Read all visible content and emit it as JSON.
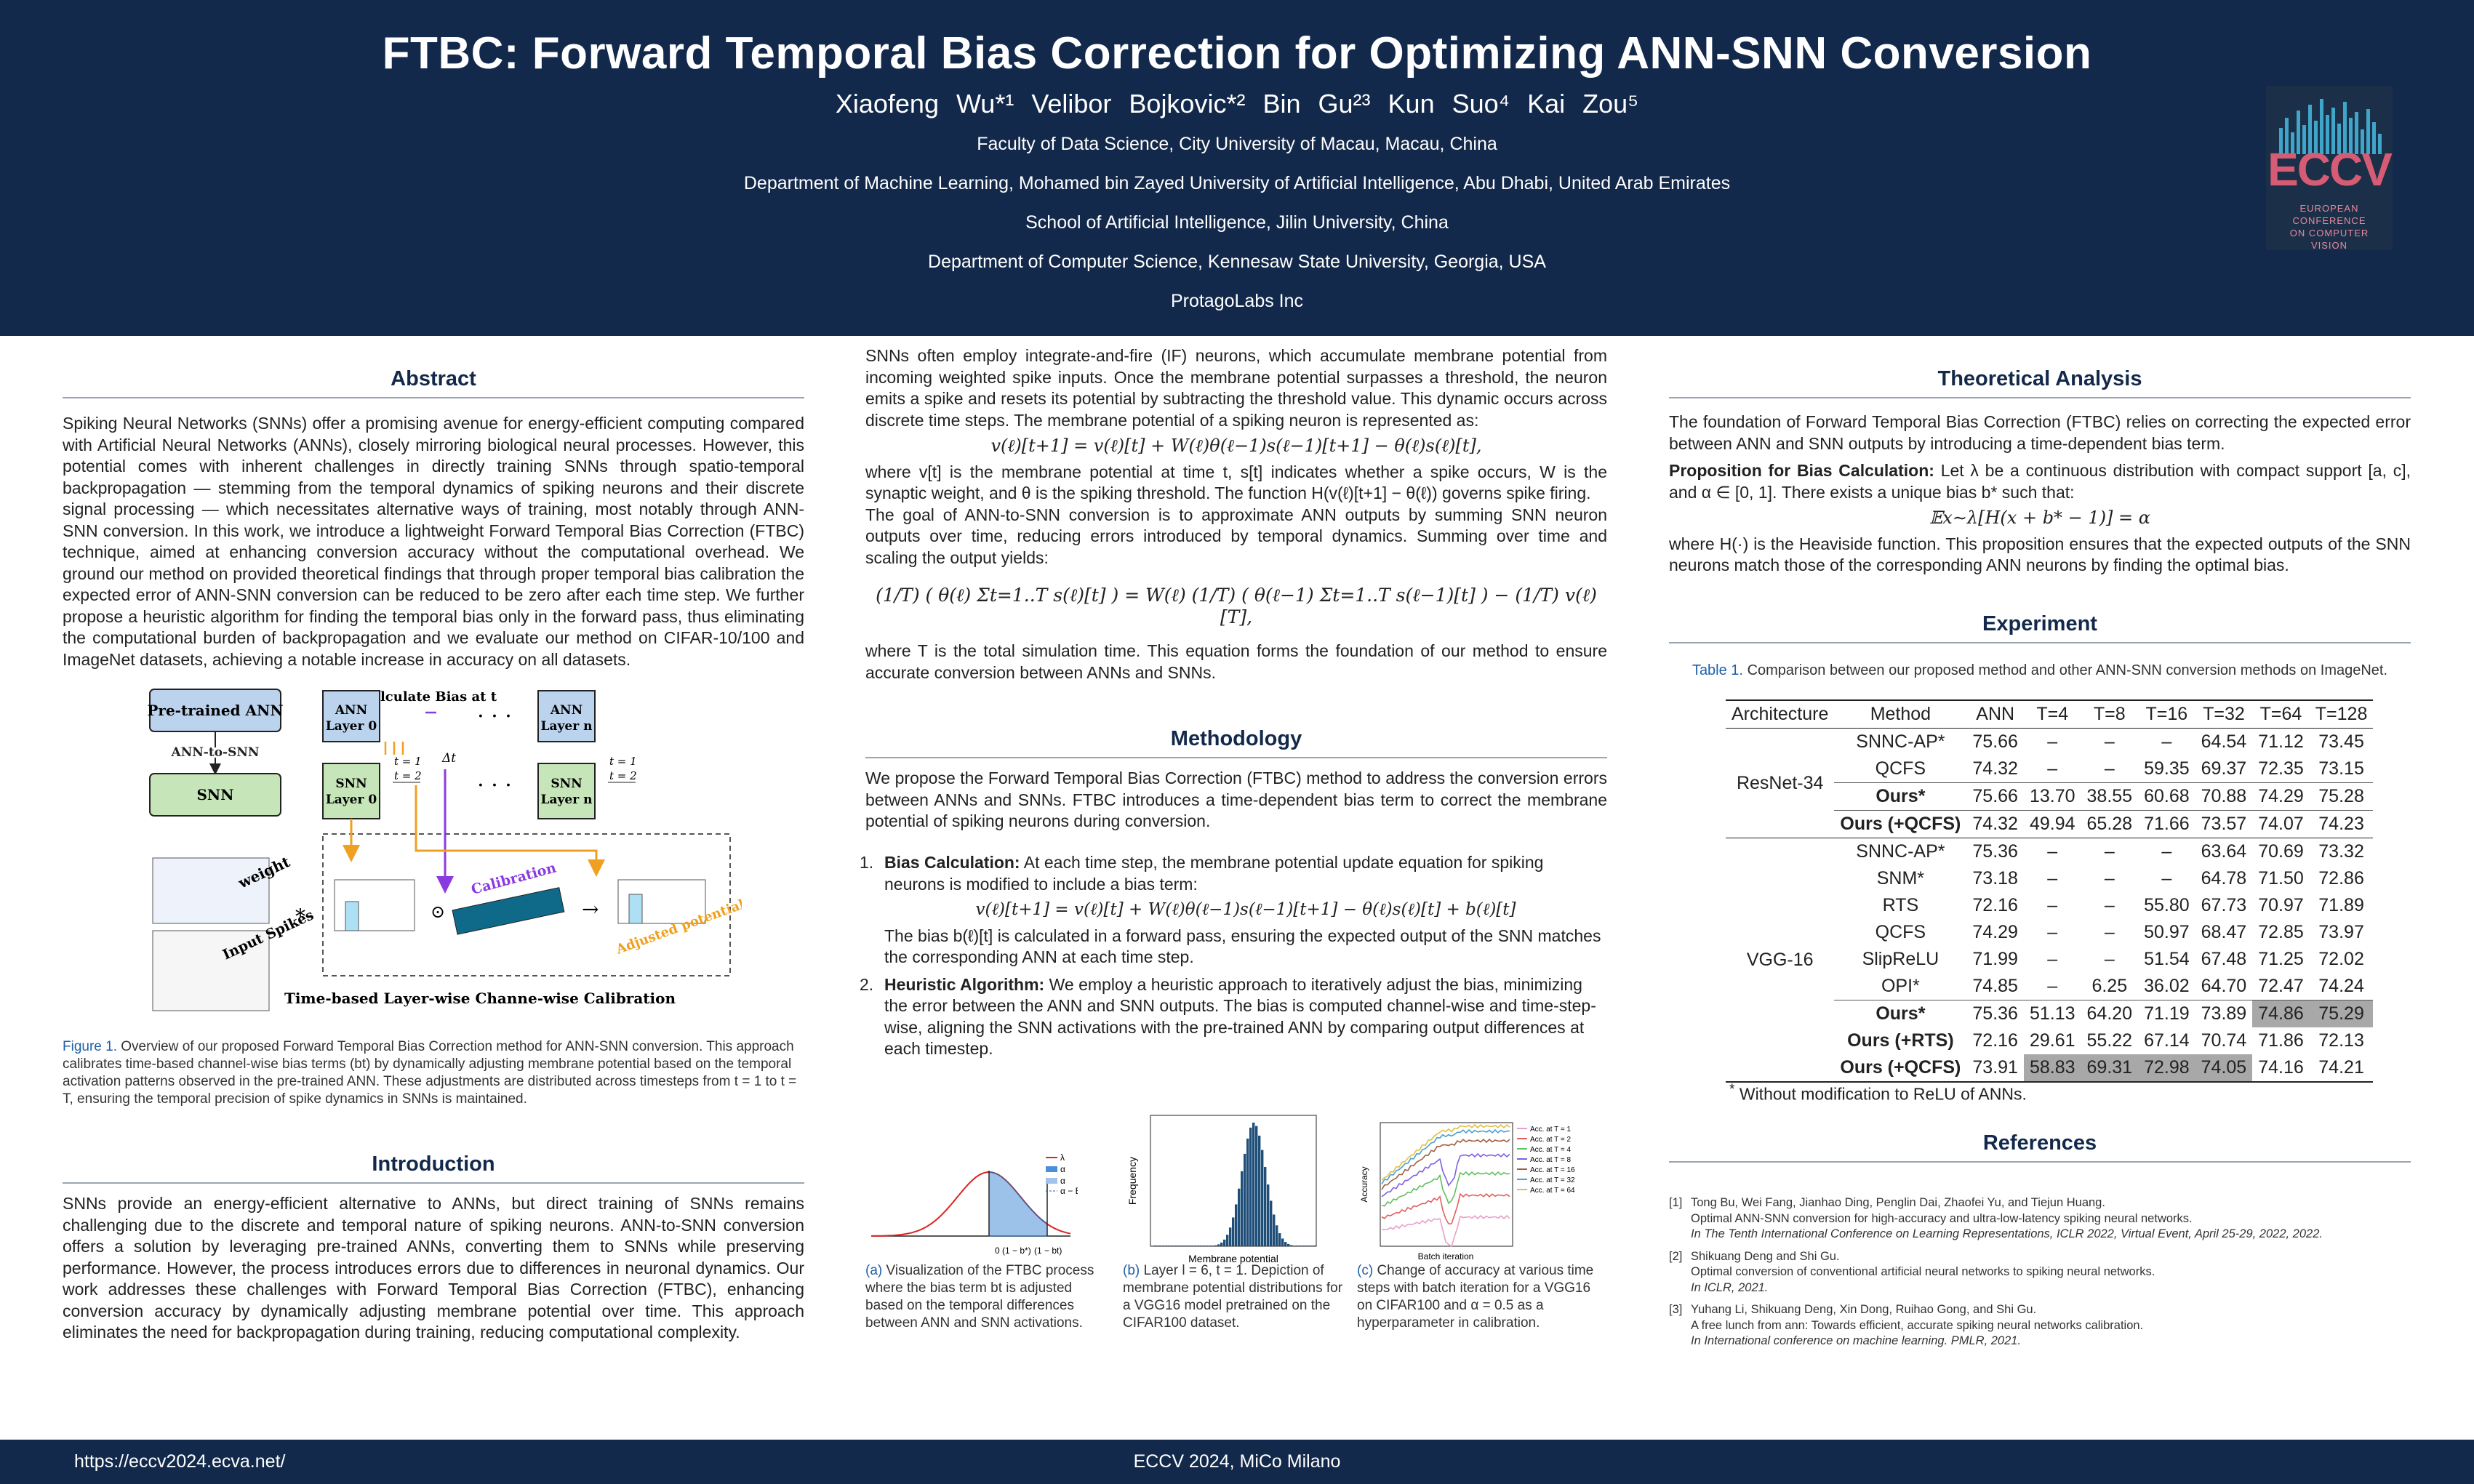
{
  "header": {
    "title": "FTBC: Forward Temporal Bias Correction for Optimizing ANN-SNN Conversion",
    "authors": [
      "Xiaofeng Wu*¹",
      "Velibor Bojkovic*²",
      "Bin Gu²³",
      "Kun Suo⁴",
      "Kai Zou⁵"
    ],
    "affiliations": [
      "Faculty of Data Science, City University of Macau, Macau, China",
      "Department of Machine Learning, Mohamed bin Zayed University of Artificial Intelligence, Abu Dhabi, United Arab Emirates",
      "School of Artificial Intelligence, Jilin University, China",
      "Department of Computer Science, Kennesaw State University, Georgia, USA",
      "ProtagoLabs Inc"
    ],
    "logo": {
      "word": "ECCV",
      "sub": [
        "EUROPEAN",
        "CONFERENCE",
        "ON COMPUTER",
        "VISION"
      ]
    }
  },
  "abstract": {
    "heading": "Abstract",
    "text": "Spiking Neural Networks (SNNs) offer a promising avenue for energy-efficient computing compared with Artificial Neural Networks (ANNs), closely mirroring biological neural processes. However, this potential comes with inherent challenges in directly training SNNs through spatio-temporal backpropagation — stemming from the temporal dynamics of spiking neurons and their discrete signal processing — which necessitates alternative ways of training, most notably through ANN-SNN conversion. In this work, we introduce a lightweight Forward Temporal Bias Correction (FTBC) technique, aimed at enhancing conversion accuracy without the computational overhead. We ground our method on provided theoretical findings that through proper temporal bias calibration the expected error of ANN-SNN conversion can be reduced to be zero after each time step. We further propose a heuristic algorithm for finding the temporal bias only in the forward pass, thus eliminating the computational burden of backpropagation and we evaluate our method on CIFAR-10/100 and ImageNet datasets, achieving a notable increase in accuracy on all datasets."
  },
  "figure1": {
    "pretrained": "Pre-trained ANN",
    "ann_to_snn": "ANN-to-SNN",
    "snn": "SNN",
    "calc_bias": "Calculate Bias at t",
    "ann0": [
      "ANN",
      "Layer 0"
    ],
    "annn": [
      "ANN",
      "Layer n"
    ],
    "snn0": [
      "SNN",
      "Layer 0"
    ],
    "snnn": [
      "SNN",
      "Layer n"
    ],
    "t1": "t = 1",
    "t2": "t = 2",
    "delta": "Δt",
    "weight": "weight",
    "input": "Input Spikes",
    "calibration": "Calibration",
    "adjusted": "Adjusted potential",
    "footer": "Time-based Layer-wise Channe-wise Calibration",
    "caption_label": "Figure 1.",
    "caption": "Overview of our proposed Forward Temporal Bias Correction method for ANN-SNN conversion. This approach calibrates time-based channel-wise bias terms (bt) by dynamically adjusting membrane potential based on the temporal activation patterns observed in the pre-trained ANN. These adjustments are distributed across timesteps from t = 1 to t = T, ensuring the temporal precision of spike dynamics in SNNs is maintained."
  },
  "introduction": {
    "heading": "Introduction",
    "text": "SNNs provide an energy-efficient alternative to ANNs, but direct training of SNNs remains challenging due to the discrete and temporal nature of spiking neurons. ANN-to-SNN conversion offers a solution by leveraging pre-trained ANNs, converting them to SNNs while preserving performance. However, the process introduces errors due to differences in neuronal dynamics. Our work addresses these challenges with Forward Temporal Bias Correction (FTBC), enhancing conversion accuracy by dynamically adjusting membrane potential over time. This approach eliminates the need for backpropagation during training, reducing computational complexity."
  },
  "middle": {
    "p1": "SNNs often employ integrate-and-fire (IF) neurons, which accumulate membrane potential from incoming weighted spike inputs. Once the membrane potential surpasses a threshold, the neuron emits a spike and resets its potential by subtracting the threshold value. This dynamic occurs across discrete time steps. The membrane potential of a spiking neuron is represented as:",
    "eq1": "v(ℓ)[t+1] = v(ℓ)[t] + W(ℓ)θ(ℓ−1)s(ℓ−1)[t+1] − θ(ℓ)s(ℓ)[t],",
    "p2": "where v[t] is the membrane potential at time t, s[t] indicates whether a spike occurs, W is the synaptic weight, and θ is the spiking threshold. The function H(v(ℓ)[t+1] − θ(ℓ)) governs spike firing.",
    "p3": "The goal of ANN-to-SNN conversion is to approximate ANN outputs by summing SNN neuron outputs over time, reducing errors introduced by temporal dynamics. Summing over time and scaling the output yields:",
    "eq2": "(1/T) ( θ(ℓ) Σt=1..T s(ℓ)[t] ) = W(ℓ) (1/T) ( θ(ℓ−1) Σt=1..T s(ℓ−1)[t] ) − (1/T) v(ℓ)[T],",
    "p4": "where T is the total simulation time. This equation forms the foundation of our method to ensure accurate conversion between ANNs and SNNs."
  },
  "methodology": {
    "heading": "Methodology",
    "intro": "We propose the Forward Temporal Bias Correction (FTBC) method to address the conversion errors between ANNs and SNNs. FTBC introduces a time-dependent bias term to correct the membrane potential of spiking neurons during conversion.",
    "items": [
      {
        "num": "1.",
        "title": "Bias Calculation:",
        "text": "At each time step, the membrane potential update equation for spiking neurons is modified to include a bias term:",
        "eq": "v(ℓ)[t+1] = v(ℓ)[t] + W(ℓ)θ(ℓ−1)s(ℓ−1)[t+1] − θ(ℓ)s(ℓ)[t] + b(ℓ)[t]",
        "after": "The bias b(ℓ)[t] is calculated in a forward pass, ensuring the expected output of the SNN matches the corresponding ANN at each time step."
      },
      {
        "num": "2.",
        "title": "Heuristic Algorithm:",
        "text": "We employ a heuristic approach to iteratively adjust the bias, minimizing the error between the ANN and SNN outputs. The bias is computed channel-wise and time-step-wise, aligning the SNN activations with the pre-trained ANN by comparing output differences at each timestep.",
        "eq": "",
        "after": ""
      }
    ]
  },
  "subfigs": {
    "a": {
      "label": "(a)",
      "caption": "Visualization of the FTBC process where the bias term bt is adjusted based on the temporal differences between ANN and SNN activations.",
      "x0": "0",
      "x1": "(1 − b*)",
      "x2": "(1 − bt)",
      "legend": [
        "λ",
        "α",
        "α",
        "α − Et"
      ]
    },
    "b": {
      "label": "(b)",
      "caption": "Layer l = 6, t = 1. Depiction of membrane potential distributions for a VGG16 model pretrained on the CIFAR100 dataset.",
      "xlabel": "Membrane potential",
      "ylabel": "Frequency"
    },
    "c": {
      "label": "(c)",
      "caption": "Change of accuracy at various time steps with batch iteration for a VGG16 on CIFAR100 and α = 0.5 as a hyperparameter in calibration.",
      "xlabel": "Batch iteration",
      "ylabel": "Accuracy",
      "legend": [
        "Acc. at T = 1",
        "Acc. at T = 2",
        "Acc. at T = 4",
        "Acc. at T = 8",
        "Acc. at T = 16",
        "Acc. at T = 32",
        "Acc. at T = 64"
      ]
    }
  },
  "theory": {
    "heading": "Theoretical Analysis",
    "p1": "The foundation of Forward Temporal Bias Correction (FTBC) relies on correcting the expected error between ANN and SNN outputs by introducing a time-dependent bias term.",
    "prop_title": "Proposition for Bias Calculation:",
    "prop": "Let λ be a continuous distribution with compact support [a, c], and α ∈ [0, 1]. There exists a unique bias b* such that:",
    "eq": "𝔼x∼λ[H(x + b* − 1)] = α",
    "p2": "where H(·) is the Heaviside function. This proposition ensures that the expected outputs of the SNN neurons match those of the corresponding ANN neurons by finding the optimal bias."
  },
  "experiment": {
    "heading": "Experiment",
    "caption_label": "Table 1.",
    "caption": "Comparison between our proposed method and other ANN-SNN conversion methods on ImageNet.",
    "columns": [
      "Architecture",
      "Method",
      "ANN",
      "T=4",
      "T=8",
      "T=16",
      "T=32",
      "T=64",
      "T=128"
    ],
    "groups": [
      {
        "arch": "ResNet-34",
        "rows": [
          {
            "method": "SNNC-AP*",
            "bold": false,
            "vals": [
              "75.66",
              "–",
              "–",
              "–",
              "64.54",
              "71.12",
              "73.45"
            ],
            "hl": []
          },
          {
            "method": "QCFS",
            "bold": false,
            "vals": [
              "74.32",
              "–",
              "–",
              "59.35",
              "69.37",
              "72.35",
              "73.15"
            ],
            "hl": []
          },
          {
            "method": "Ours*",
            "bold": true,
            "vals": [
              "75.66",
              "13.70",
              "38.55",
              "60.68",
              "70.88",
              "74.29",
              "75.28"
            ],
            "hl": []
          },
          {
            "method": "Ours (+QCFS)",
            "bold": true,
            "vals": [
              "74.32",
              "49.94",
              "65.28",
              "71.66",
              "73.57",
              "74.07",
              "74.23"
            ],
            "hl": []
          }
        ]
      },
      {
        "arch": "VGG-16",
        "rows": [
          {
            "method": "SNNC-AP*",
            "bold": false,
            "vals": [
              "75.36",
              "–",
              "–",
              "–",
              "63.64",
              "70.69",
              "73.32"
            ],
            "hl": []
          },
          {
            "method": "SNM*",
            "bold": false,
            "vals": [
              "73.18",
              "–",
              "–",
              "–",
              "64.78",
              "71.50",
              "72.86"
            ],
            "hl": []
          },
          {
            "method": "RTS",
            "bold": false,
            "vals": [
              "72.16",
              "–",
              "–",
              "55.80",
              "67.73",
              "70.97",
              "71.89"
            ],
            "hl": []
          },
          {
            "method": "QCFS",
            "bold": false,
            "vals": [
              "74.29",
              "–",
              "–",
              "50.97",
              "68.47",
              "72.85",
              "73.97"
            ],
            "hl": []
          },
          {
            "method": "SlipReLU",
            "bold": false,
            "vals": [
              "71.99",
              "–",
              "–",
              "51.54",
              "67.48",
              "71.25",
              "72.02"
            ],
            "hl": []
          },
          {
            "method": "OPI*",
            "bold": false,
            "vals": [
              "74.85",
              "–",
              "6.25",
              "36.02",
              "64.70",
              "72.47",
              "74.24"
            ],
            "hl": []
          },
          {
            "method": "Ours*",
            "bold": true,
            "vals": [
              "75.36",
              "51.13",
              "64.20",
              "71.19",
              "73.89",
              "74.86",
              "75.29"
            ],
            "hl": [
              5,
              6
            ]
          },
          {
            "method": "Ours (+RTS)",
            "bold": true,
            "vals": [
              "72.16",
              "29.61",
              "55.22",
              "67.14",
              "70.74",
              "71.86",
              "72.13"
            ],
            "hl": []
          },
          {
            "method": "Ours (+QCFS)",
            "bold": true,
            "vals": [
              "73.91",
              "58.83",
              "69.31",
              "72.98",
              "74.05",
              "74.16",
              "74.21"
            ],
            "hl": [
              1,
              2,
              3,
              4
            ]
          }
        ]
      }
    ],
    "footnote": "Without modification to ReLU of ANNs."
  },
  "references": {
    "heading": "References",
    "items": [
      {
        "num": "[1]",
        "authors": "Tong Bu, Wei Fang, Jianhao Ding, Penglin Dai, Zhaofei Yu, and Tiejun Huang.",
        "title": "Optimal ANN-SNN conversion for high-accuracy and ultra-low-latency spiking neural networks.",
        "venue": "In The Tenth International Conference on Learning Representations, ICLR 2022, Virtual Event, April 25-29, 2022, 2022."
      },
      {
        "num": "[2]",
        "authors": "Shikuang Deng and Shi Gu.",
        "title": "Optimal conversion of conventional artificial neural networks to spiking neural networks.",
        "venue": "In ICLR, 2021."
      },
      {
        "num": "[3]",
        "authors": "Yuhang Li, Shikuang Deng, Xin Dong, Ruihao Gong, and Shi Gu.",
        "title": "A free lunch from ann: Towards efficient, accurate spiking neural networks calibration.",
        "venue": "In International conference on machine learning. PMLR, 2021."
      }
    ]
  },
  "footer": {
    "url": "https://eccv2024.ecva.net/",
    "conference": "ECCV 2024, MiCo Milano"
  }
}
